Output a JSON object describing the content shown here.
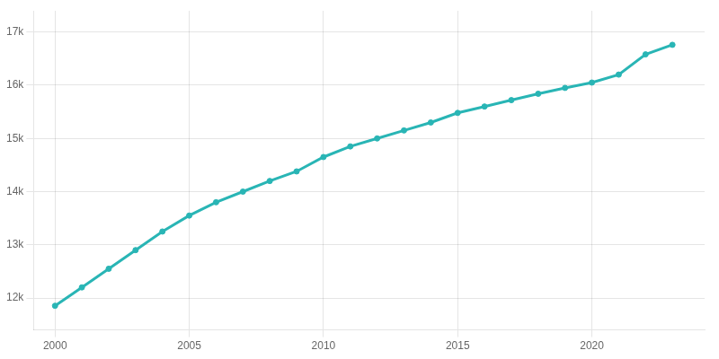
{
  "chart_data": {
    "type": "line",
    "x": [
      2000,
      2001,
      2002,
      2003,
      2004,
      2005,
      2006,
      2007,
      2008,
      2009,
      2010,
      2011,
      2012,
      2013,
      2014,
      2015,
      2016,
      2017,
      2018,
      2019,
      2020,
      2021,
      2022,
      2023
    ],
    "values": [
      11854,
      12200,
      12550,
      12900,
      13250,
      13550,
      13800,
      14000,
      14200,
      14380,
      14650,
      14850,
      15000,
      15150,
      15300,
      15480,
      15600,
      15720,
      15840,
      15950,
      16050,
      16200,
      16580,
      16760
    ],
    "color": "#29b5b5",
    "marker": "circle",
    "xlim": [
      1999.2,
      2024.2
    ],
    "xticks": [
      2000,
      2005,
      2010,
      2015,
      2020
    ],
    "ylim": [
      11400,
      17400
    ],
    "yticks": [
      {
        "value": 12000,
        "label": "12k"
      },
      {
        "value": 13000,
        "label": "13k"
      },
      {
        "value": 14000,
        "label": "14k"
      },
      {
        "value": 15000,
        "label": "15k"
      },
      {
        "value": 16000,
        "label": "16k"
      },
      {
        "value": 17000,
        "label": "17k"
      }
    ],
    "grid": true
  }
}
